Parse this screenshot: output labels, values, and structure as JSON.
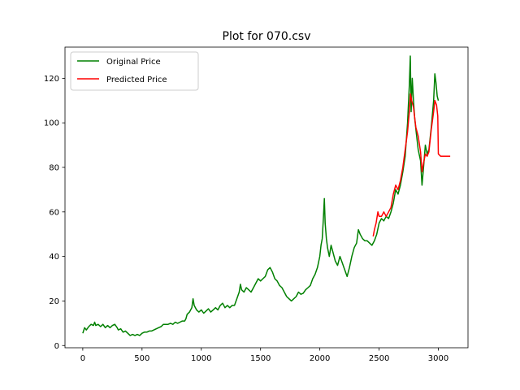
{
  "chart_data": {
    "type": "line",
    "title": "Plot for 070.csv",
    "xlabel": "",
    "ylabel": "",
    "xlim": [
      -150,
      3250
    ],
    "ylim": [
      -1,
      134
    ],
    "xticks": [
      0,
      500,
      1000,
      1500,
      2000,
      2500,
      3000
    ],
    "yticks": [
      0,
      20,
      40,
      60,
      80,
      100,
      120
    ],
    "grid": false,
    "legend_position": "top-left",
    "series": [
      {
        "name": "Original Price",
        "color": "#008000",
        "points": [
          [
            0,
            5.5
          ],
          [
            15,
            8
          ],
          [
            30,
            7
          ],
          [
            50,
            8.5
          ],
          [
            70,
            9.5
          ],
          [
            90,
            9
          ],
          [
            100,
            10.5
          ],
          [
            110,
            9
          ],
          [
            130,
            9.5
          ],
          [
            150,
            8.5
          ],
          [
            170,
            9.5
          ],
          [
            190,
            8
          ],
          [
            210,
            9
          ],
          [
            230,
            8
          ],
          [
            250,
            9
          ],
          [
            270,
            9.5
          ],
          [
            290,
            8
          ],
          [
            300,
            7
          ],
          [
            320,
            7.5
          ],
          [
            340,
            6
          ],
          [
            360,
            6.5
          ],
          [
            380,
            5.5
          ],
          [
            400,
            4.5
          ],
          [
            420,
            5
          ],
          [
            440,
            4.5
          ],
          [
            460,
            5
          ],
          [
            480,
            4.5
          ],
          [
            500,
            5.5
          ],
          [
            520,
            6
          ],
          [
            540,
            6
          ],
          [
            560,
            6.5
          ],
          [
            580,
            6.5
          ],
          [
            600,
            7
          ],
          [
            620,
            7.5
          ],
          [
            640,
            8
          ],
          [
            660,
            8.5
          ],
          [
            680,
            9.5
          ],
          [
            700,
            9.5
          ],
          [
            720,
            9.5
          ],
          [
            740,
            10
          ],
          [
            760,
            9.5
          ],
          [
            780,
            10.5
          ],
          [
            800,
            10
          ],
          [
            820,
            10.5
          ],
          [
            840,
            11
          ],
          [
            860,
            11
          ],
          [
            870,
            12
          ],
          [
            880,
            14
          ],
          [
            900,
            15
          ],
          [
            920,
            17
          ],
          [
            930,
            21
          ],
          [
            940,
            18
          ],
          [
            960,
            16
          ],
          [
            980,
            15
          ],
          [
            1000,
            16
          ],
          [
            1020,
            14.5
          ],
          [
            1040,
            15.5
          ],
          [
            1060,
            16.5
          ],
          [
            1080,
            15
          ],
          [
            1100,
            16
          ],
          [
            1120,
            17
          ],
          [
            1140,
            16
          ],
          [
            1160,
            18
          ],
          [
            1180,
            19
          ],
          [
            1200,
            17
          ],
          [
            1220,
            18
          ],
          [
            1240,
            17
          ],
          [
            1260,
            18
          ],
          [
            1280,
            18
          ],
          [
            1300,
            21
          ],
          [
            1320,
            24
          ],
          [
            1330,
            27.5
          ],
          [
            1340,
            25
          ],
          [
            1360,
            24
          ],
          [
            1380,
            26
          ],
          [
            1400,
            25
          ],
          [
            1420,
            24
          ],
          [
            1440,
            26
          ],
          [
            1460,
            28
          ],
          [
            1480,
            30
          ],
          [
            1500,
            29
          ],
          [
            1520,
            30
          ],
          [
            1540,
            31
          ],
          [
            1560,
            34
          ],
          [
            1580,
            35
          ],
          [
            1600,
            33
          ],
          [
            1620,
            30
          ],
          [
            1640,
            29
          ],
          [
            1660,
            27
          ],
          [
            1680,
            26
          ],
          [
            1700,
            24
          ],
          [
            1720,
            22
          ],
          [
            1740,
            21
          ],
          [
            1760,
            20
          ],
          [
            1780,
            21
          ],
          [
            1800,
            22
          ],
          [
            1820,
            24
          ],
          [
            1840,
            23
          ],
          [
            1860,
            23.5
          ],
          [
            1880,
            25
          ],
          [
            1900,
            26
          ],
          [
            1920,
            27
          ],
          [
            1940,
            30
          ],
          [
            1960,
            32
          ],
          [
            1980,
            35
          ],
          [
            2000,
            40
          ],
          [
            2010,
            45
          ],
          [
            2020,
            48
          ],
          [
            2030,
            57
          ],
          [
            2038,
            66
          ],
          [
            2045,
            55
          ],
          [
            2055,
            48
          ],
          [
            2065,
            44
          ],
          [
            2080,
            40
          ],
          [
            2095,
            45
          ],
          [
            2110,
            42
          ],
          [
            2130,
            38
          ],
          [
            2150,
            36
          ],
          [
            2170,
            40
          ],
          [
            2190,
            37
          ],
          [
            2210,
            34
          ],
          [
            2230,
            31
          ],
          [
            2250,
            35
          ],
          [
            2270,
            40
          ],
          [
            2290,
            44
          ],
          [
            2310,
            46
          ],
          [
            2325,
            52
          ],
          [
            2340,
            50
          ],
          [
            2360,
            48
          ],
          [
            2380,
            47
          ],
          [
            2400,
            47
          ],
          [
            2420,
            46
          ],
          [
            2440,
            45
          ],
          [
            2460,
            47
          ],
          [
            2480,
            50
          ],
          [
            2500,
            55
          ],
          [
            2520,
            57
          ],
          [
            2540,
            56
          ],
          [
            2560,
            58
          ],
          [
            2580,
            57
          ],
          [
            2600,
            60
          ],
          [
            2620,
            64
          ],
          [
            2640,
            70
          ],
          [
            2660,
            68
          ],
          [
            2680,
            72
          ],
          [
            2700,
            78
          ],
          [
            2720,
            85
          ],
          [
            2740,
            100
          ],
          [
            2755,
            117
          ],
          [
            2763,
            130
          ],
          [
            2770,
            105
          ],
          [
            2780,
            120
          ],
          [
            2790,
            110
          ],
          [
            2800,
            102
          ],
          [
            2815,
            95
          ],
          [
            2830,
            88
          ],
          [
            2850,
            83
          ],
          [
            2862,
            72
          ],
          [
            2875,
            80
          ],
          [
            2890,
            90
          ],
          [
            2905,
            86
          ],
          [
            2920,
            88
          ],
          [
            2940,
            98
          ],
          [
            2960,
            110
          ],
          [
            2970,
            122
          ],
          [
            2980,
            118
          ],
          [
            2990,
            112
          ],
          [
            3000,
            110
          ]
        ]
      },
      {
        "name": "Predicted Price",
        "color": "#ff0000",
        "points": [
          [
            2450,
            49
          ],
          [
            2460,
            52
          ],
          [
            2475,
            55
          ],
          [
            2490,
            60
          ],
          [
            2500,
            58
          ],
          [
            2520,
            58
          ],
          [
            2540,
            60
          ],
          [
            2560,
            58
          ],
          [
            2580,
            60
          ],
          [
            2600,
            62
          ],
          [
            2620,
            68
          ],
          [
            2640,
            72
          ],
          [
            2660,
            70
          ],
          [
            2680,
            74
          ],
          [
            2700,
            80
          ],
          [
            2720,
            88
          ],
          [
            2740,
            96
          ],
          [
            2755,
            105
          ],
          [
            2765,
            113
          ],
          [
            2775,
            110
          ],
          [
            2790,
            107
          ],
          [
            2810,
            98
          ],
          [
            2830,
            94
          ],
          [
            2850,
            87
          ],
          [
            2862,
            78
          ],
          [
            2875,
            82
          ],
          [
            2890,
            86
          ],
          [
            2905,
            85
          ],
          [
            2920,
            87
          ],
          [
            2940,
            97
          ],
          [
            2960,
            105
          ],
          [
            2970,
            110
          ],
          [
            2985,
            108
          ],
          [
            2995,
            103
          ],
          [
            3000,
            86
          ],
          [
            3020,
            85
          ],
          [
            3040,
            85
          ],
          [
            3100,
            85
          ]
        ]
      }
    ]
  }
}
